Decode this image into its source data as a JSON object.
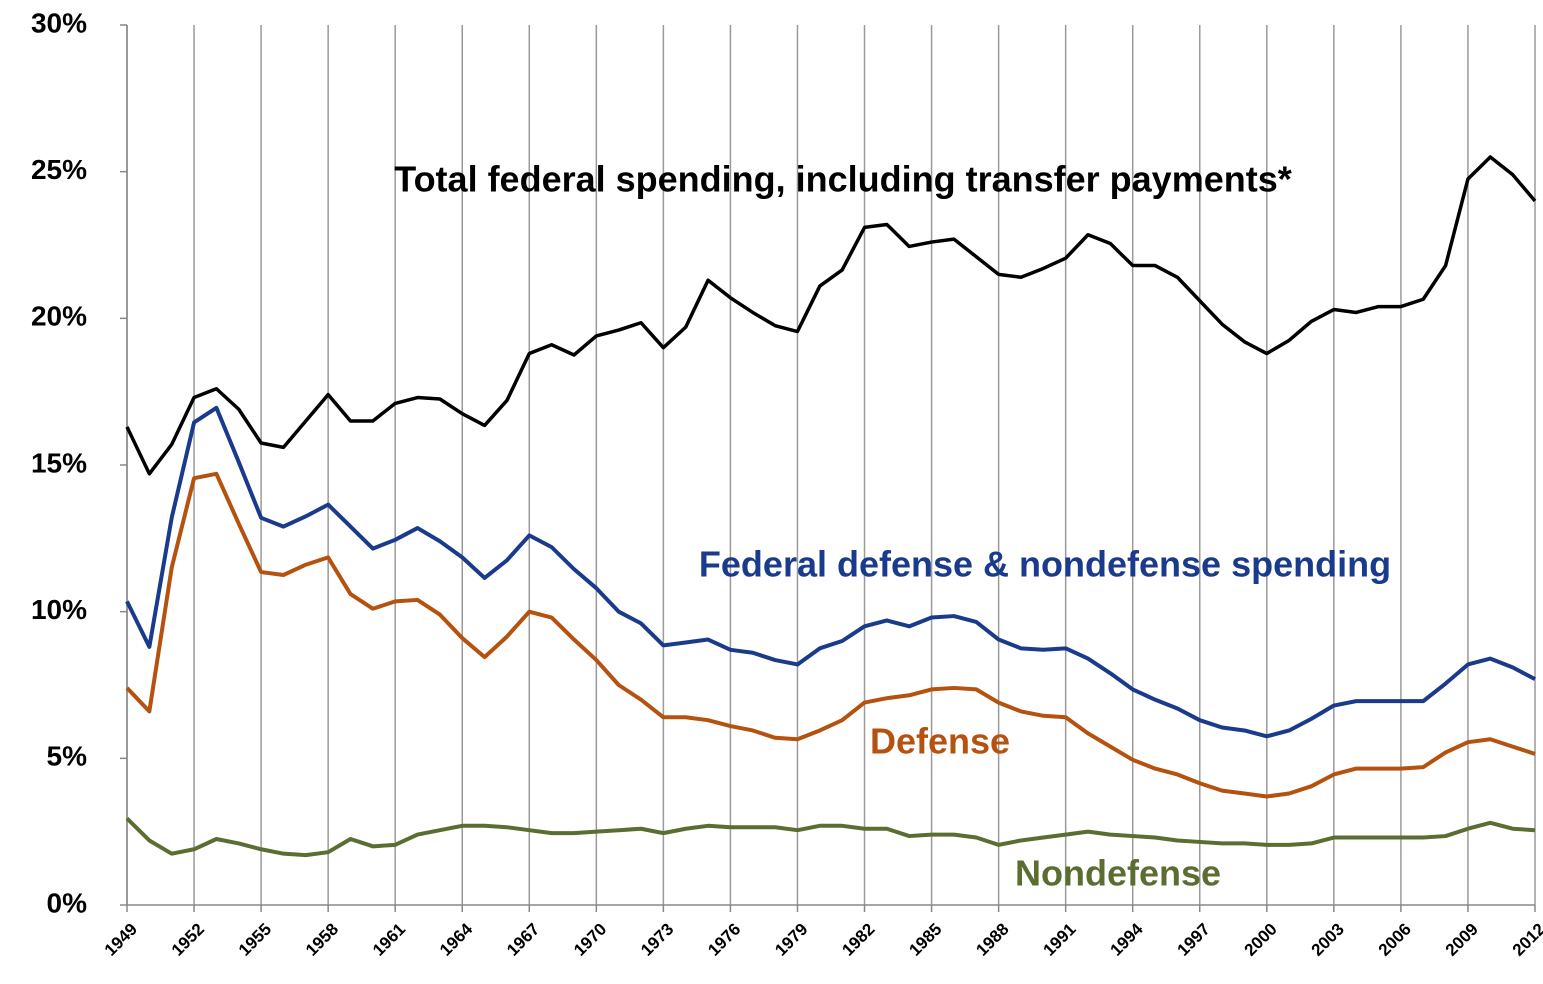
{
  "chart_data": {
    "type": "line",
    "x": [
      1949,
      1950,
      1951,
      1952,
      1953,
      1954,
      1955,
      1956,
      1957,
      1958,
      1959,
      1960,
      1961,
      1962,
      1963,
      1964,
      1965,
      1966,
      1967,
      1968,
      1969,
      1970,
      1971,
      1972,
      1973,
      1974,
      1975,
      1976,
      1977,
      1978,
      1979,
      1980,
      1981,
      1982,
      1983,
      1984,
      1985,
      1986,
      1987,
      1988,
      1989,
      1990,
      1991,
      1992,
      1993,
      1994,
      1995,
      1996,
      1997,
      1998,
      1999,
      2000,
      2001,
      2002,
      2003,
      2004,
      2005,
      2006,
      2007,
      2008,
      2009,
      2010,
      2011,
      2012
    ],
    "series": [
      {
        "name": "Total federal spending, including transfer payments*",
        "color": "#000000",
        "values": [
          16.3,
          14.7,
          15.7,
          17.3,
          17.6,
          16.9,
          15.75,
          15.6,
          16.5,
          17.4,
          16.5,
          16.5,
          17.1,
          17.3,
          17.25,
          16.75,
          16.35,
          17.2,
          18.8,
          19.1,
          18.75,
          19.4,
          19.6,
          19.85,
          19.0,
          19.7,
          21.3,
          20.7,
          20.2,
          19.75,
          19.55,
          21.1,
          21.65,
          23.1,
          23.2,
          22.45,
          22.6,
          22.7,
          22.1,
          21.5,
          21.4,
          21.7,
          22.05,
          22.85,
          22.55,
          21.8,
          21.8,
          21.4,
          20.6,
          19.8,
          19.2,
          18.8,
          19.25,
          19.9,
          20.3,
          20.2,
          20.4,
          20.4,
          20.65,
          21.8,
          24.75,
          25.5,
          24.9,
          24.0
        ]
      },
      {
        "name": "Federal defense & nondefense spending",
        "color": "#1a3a8c",
        "values": [
          10.35,
          8.8,
          13.2,
          16.45,
          16.95,
          15.1,
          13.2,
          12.9,
          13.25,
          13.65,
          12.9,
          12.15,
          12.45,
          12.85,
          12.4,
          11.85,
          11.15,
          11.75,
          12.6,
          12.2,
          11.45,
          10.8,
          10.0,
          9.6,
          8.85,
          8.95,
          9.05,
          8.7,
          8.6,
          8.35,
          8.2,
          8.75,
          9.0,
          9.5,
          9.7,
          9.5,
          9.8,
          9.85,
          9.65,
          9.05,
          8.75,
          8.7,
          8.75,
          8.4,
          7.9,
          7.35,
          7.0,
          6.7,
          6.3,
          6.05,
          5.95,
          5.75,
          5.95,
          6.35,
          6.8,
          6.95,
          6.95,
          6.95,
          6.95,
          7.55,
          8.2,
          8.4,
          8.1,
          7.7
        ]
      },
      {
        "name": "Defense",
        "color": "#b5520f",
        "values": [
          7.4,
          6.6,
          11.5,
          14.55,
          14.7,
          13.0,
          11.35,
          11.25,
          11.6,
          11.85,
          10.6,
          10.1,
          10.35,
          10.4,
          9.9,
          9.1,
          8.45,
          9.15,
          10.0,
          9.8,
          9.05,
          8.35,
          7.5,
          7.0,
          6.4,
          6.4,
          6.3,
          6.1,
          5.95,
          5.7,
          5.65,
          5.95,
          6.3,
          6.9,
          7.05,
          7.15,
          7.35,
          7.4,
          7.35,
          6.9,
          6.6,
          6.45,
          6.4,
          5.85,
          5.4,
          4.95,
          4.65,
          4.45,
          4.15,
          3.9,
          3.8,
          3.7,
          3.8,
          4.05,
          4.45,
          4.65,
          4.65,
          4.65,
          4.7,
          5.2,
          5.55,
          5.65,
          5.4,
          5.15
        ]
      },
      {
        "name": "Nondefense",
        "color": "#5a6e32",
        "values": [
          2.95,
          2.2,
          1.75,
          1.9,
          2.25,
          2.1,
          1.9,
          1.75,
          1.7,
          1.8,
          2.25,
          2.0,
          2.05,
          2.4,
          2.55,
          2.7,
          2.7,
          2.65,
          2.55,
          2.45,
          2.45,
          2.5,
          2.55,
          2.6,
          2.45,
          2.6,
          2.7,
          2.65,
          2.65,
          2.65,
          2.55,
          2.7,
          2.7,
          2.6,
          2.6,
          2.35,
          2.4,
          2.4,
          2.3,
          2.05,
          2.2,
          2.3,
          2.4,
          2.5,
          2.4,
          2.35,
          2.3,
          2.2,
          2.15,
          2.1,
          2.1,
          2.05,
          2.05,
          2.1,
          2.3,
          2.3,
          2.3,
          2.3,
          2.3,
          2.35,
          2.6,
          2.8,
          2.6,
          2.55
        ]
      }
    ],
    "xlim": [
      1949,
      2012
    ],
    "xticks": [
      1949,
      1952,
      1955,
      1958,
      1961,
      1964,
      1967,
      1970,
      1973,
      1976,
      1979,
      1982,
      1985,
      1988,
      1991,
      1994,
      1997,
      2000,
      2003,
      2006,
      2009,
      2012
    ],
    "ylim": [
      0,
      30
    ],
    "yticks": [
      {
        "value": 0,
        "label": "0%"
      },
      {
        "value": 5,
        "label": "5%"
      },
      {
        "value": 10,
        "label": "10%"
      },
      {
        "value": 15,
        "label": "15%"
      },
      {
        "value": 20,
        "label": "20%"
      },
      {
        "value": 25,
        "label": "25%"
      },
      {
        "value": 30,
        "label": "30%"
      }
    ],
    "grid": true
  }
}
